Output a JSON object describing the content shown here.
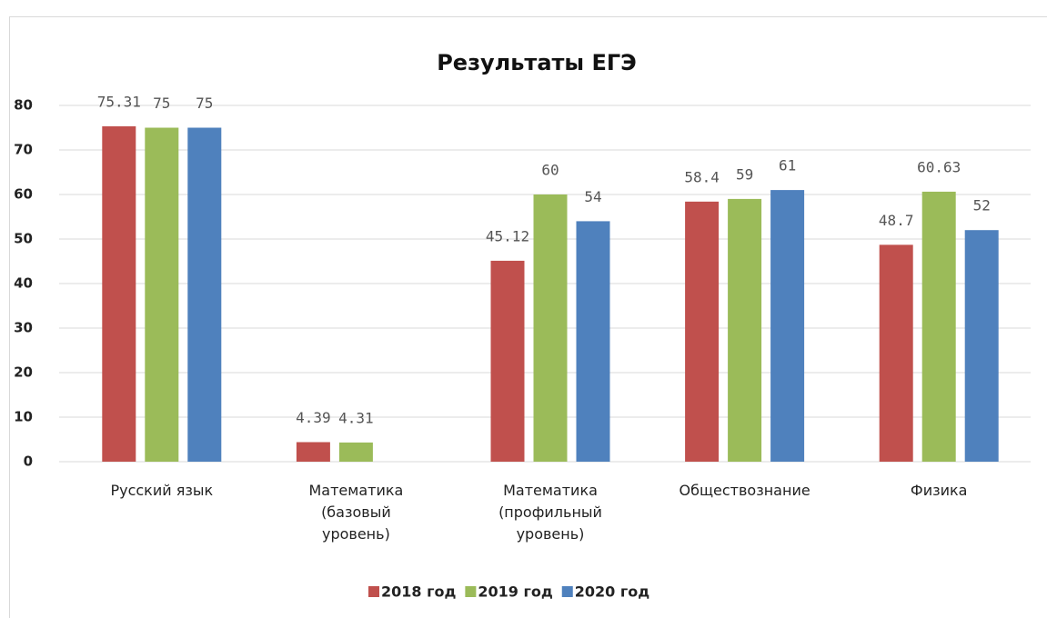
{
  "chart_data": {
    "type": "bar",
    "title": "Результаты ЕГЭ",
    "categories": [
      "Русский язык",
      "Математика (базовый уровень)",
      "Математика (профильный уровень)",
      "Обществознание",
      "Физика"
    ],
    "series": [
      {
        "name": "2018 год",
        "color": "#c0504d",
        "values": [
          75.31,
          4.39,
          45.12,
          58.4,
          48.7
        ]
      },
      {
        "name": "2019 год",
        "color": "#9bbb59",
        "values": [
          75,
          4.31,
          60,
          59,
          60.63
        ]
      },
      {
        "name": "2020 год",
        "color": "#4f81bd",
        "values": [
          75,
          null,
          54,
          61,
          52
        ]
      }
    ],
    "ylim": [
      0,
      80
    ],
    "yticks": [
      0,
      10,
      20,
      30,
      40,
      50,
      60,
      70,
      80
    ],
    "grid": true,
    "legend": "bottom"
  }
}
